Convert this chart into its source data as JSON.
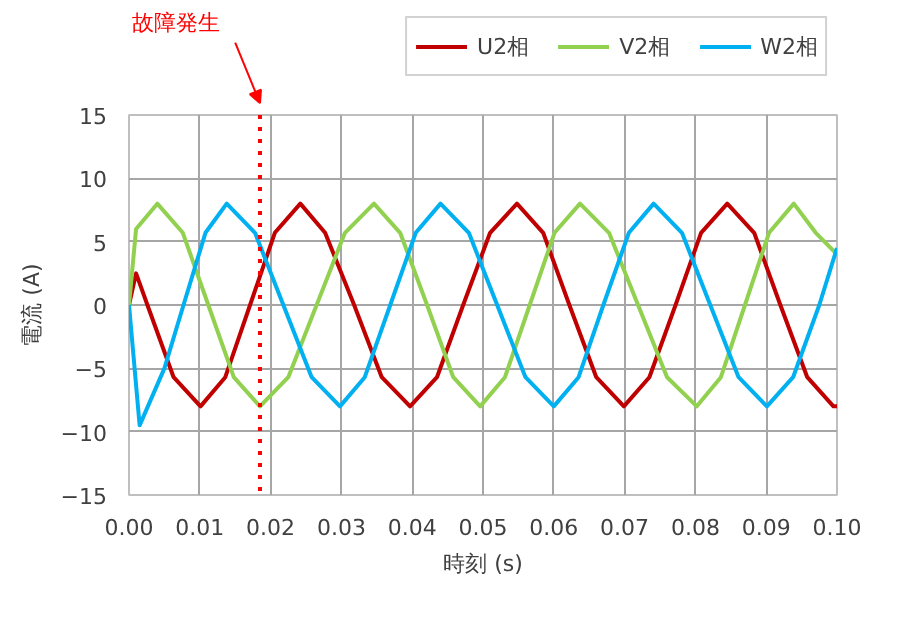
{
  "chart_data": {
    "type": "line",
    "xlabel": "時刻 (s)",
    "ylabel": "電流 (A)",
    "xlim": [
      0,
      0.1
    ],
    "ylim": [
      -15,
      15
    ],
    "xticks": [
      {
        "value": 0,
        "label": "0.00"
      },
      {
        "value": 0.01,
        "label": "0.01"
      },
      {
        "value": 0.02,
        "label": "0.02"
      },
      {
        "value": 0.03,
        "label": "0.03"
      },
      {
        "value": 0.04,
        "label": "0.04"
      },
      {
        "value": 0.05,
        "label": "0.05"
      },
      {
        "value": 0.06,
        "label": "0.06"
      },
      {
        "value": 0.07,
        "label": "0.07"
      },
      {
        "value": 0.08,
        "label": "0.08"
      },
      {
        "value": 0.09,
        "label": "0.09"
      },
      {
        "value": 0.1,
        "label": "0.10"
      }
    ],
    "yticks": [
      -15,
      -10,
      -5,
      0,
      5,
      10,
      15
    ],
    "grid": true,
    "legend": "top right",
    "ref_lines": [
      {
        "axis": "x",
        "value": 0.0185,
        "label": "故障発生",
        "color": "#ff0000",
        "line_style": "dotted"
      }
    ],
    "series": [
      {
        "name": "U2相",
        "color": "#c00000",
        "x": [
          0,
          0.001,
          0.0026,
          0.0063,
          0.0101,
          0.0136,
          0.0171,
          0.0206,
          0.0242,
          0.0277,
          0.0318,
          0.0357,
          0.0397,
          0.0435,
          0.0472,
          0.051,
          0.0548,
          0.0585,
          0.0622,
          0.066,
          0.0699,
          0.0735,
          0.0772,
          0.0808,
          0.0845,
          0.0883,
          0.092,
          0.0958,
          0.0995,
          0.1
        ],
        "values": [
          0,
          2.5,
          0,
          -5.7,
          -8,
          -5.7,
          0,
          5.7,
          8,
          5.7,
          0,
          -5.7,
          -8,
          -5.7,
          0,
          5.7,
          8,
          5.7,
          0,
          -5.7,
          -8,
          -5.7,
          0,
          5.7,
          8,
          5.7,
          0,
          -5.7,
          -8,
          -8
        ]
      },
      {
        "name": "V2相",
        "color": "#92d050",
        "x": [
          0,
          0.001,
          0.004,
          0.0076,
          0.0112,
          0.0148,
          0.0185,
          0.0225,
          0.0265,
          0.0305,
          0.0346,
          0.0383,
          0.0421,
          0.0458,
          0.0496,
          0.0531,
          0.0566,
          0.0601,
          0.0637,
          0.0678,
          0.0719,
          0.076,
          0.0802,
          0.0836,
          0.087,
          0.0904,
          0.0939,
          0.097,
          0.1
        ],
        "values": [
          0,
          6,
          8,
          5.7,
          0,
          -5.7,
          -8,
          -5.7,
          0,
          5.7,
          8,
          5.7,
          0,
          -5.7,
          -8,
          -5.7,
          0,
          5.7,
          8,
          5.7,
          0,
          -5.7,
          -8,
          -5.7,
          0,
          5.7,
          8,
          5.7,
          4
        ]
      },
      {
        "name": "W2相",
        "color": "#00b0f0",
        "x": [
          0,
          0.0015,
          0.005,
          0.0077,
          0.0108,
          0.0138,
          0.0178,
          0.0218,
          0.0258,
          0.0298,
          0.0333,
          0.0369,
          0.0405,
          0.044,
          0.048,
          0.052,
          0.056,
          0.06,
          0.0635,
          0.067,
          0.0706,
          0.0741,
          0.0781,
          0.0821,
          0.0861,
          0.0901,
          0.0938,
          0.0975,
          0.1
        ],
        "values": [
          0,
          -9.5,
          -5,
          0,
          5.7,
          8,
          5.7,
          0,
          -5.7,
          -8,
          -5.7,
          0,
          5.7,
          8,
          5.7,
          0,
          -5.7,
          -8,
          -5.7,
          0,
          5.7,
          8,
          5.7,
          0,
          -5.7,
          -8,
          -5.7,
          0,
          4.5
        ]
      }
    ]
  }
}
